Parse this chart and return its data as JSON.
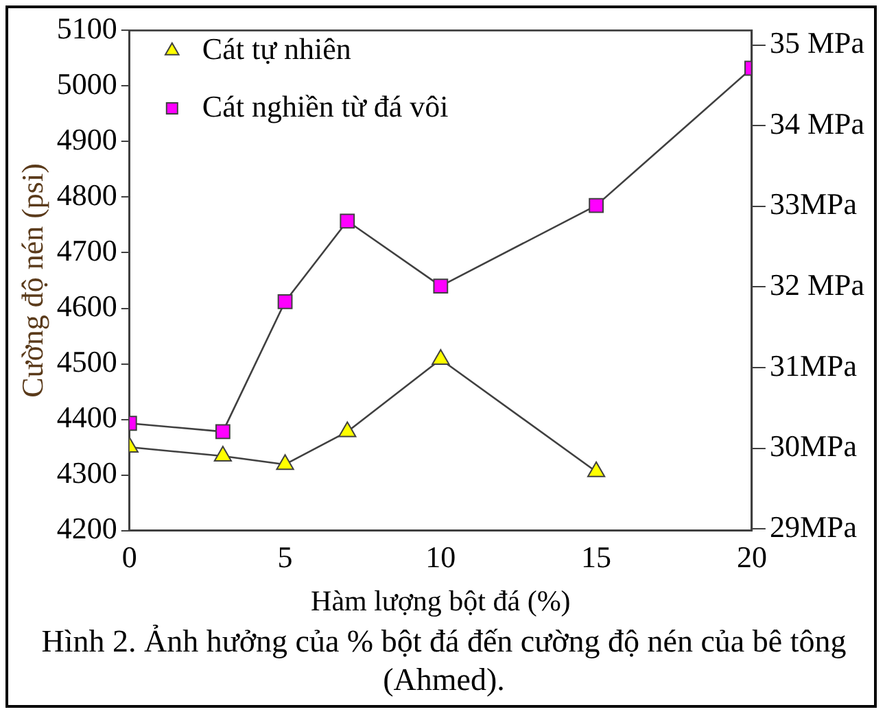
{
  "chart_data": {
    "type": "line",
    "xlabel": "Hàm lượng bột đá (%)",
    "ylabel": "Cường độ nén (psi)",
    "series": [
      {
        "name": "Cát tự nhiên",
        "color": "#ffff00",
        "marker": "triangle",
        "x": [
          0,
          3,
          5,
          7,
          10,
          15
        ],
        "values": [
          4350,
          4334,
          4319,
          4378,
          4508,
          4306
        ]
      },
      {
        "name": "Cát nghiền từ đá vôi",
        "color": "#ff00ff",
        "marker": "square",
        "x": [
          0,
          3,
          5,
          7,
          10,
          15,
          20
        ],
        "values": [
          4393,
          4378,
          4612,
          4757,
          4640,
          4785,
          5032
        ]
      }
    ],
    "xlim": [
      0,
      20
    ],
    "xticks": [
      0,
      5,
      10,
      15,
      20
    ],
    "ylim": [
      4200,
      5100
    ],
    "yticks": [
      4200,
      4300,
      4400,
      4500,
      4600,
      4700,
      4800,
      4900,
      5000,
      5100
    ],
    "y2lim": [
      28.98,
      35.18
    ],
    "y2ticks": [
      {
        "value": 29,
        "label": "29MPa"
      },
      {
        "value": 30,
        "label": "30MPa"
      },
      {
        "value": 31,
        "label": "31MPa"
      },
      {
        "value": 32,
        "label": "32 MPa"
      },
      {
        "value": 33,
        "label": "33MPa"
      },
      {
        "value": 34,
        "label": "34 MPa"
      },
      {
        "value": 35,
        "label": "35 MPa"
      }
    ],
    "grid": false,
    "legend": "top left",
    "line_style": "solid",
    "annotations": [
      "Hình 2. Ảnh hưởng của % bột đá đến cường độ nén của bê tông (Ahmed)."
    ]
  }
}
